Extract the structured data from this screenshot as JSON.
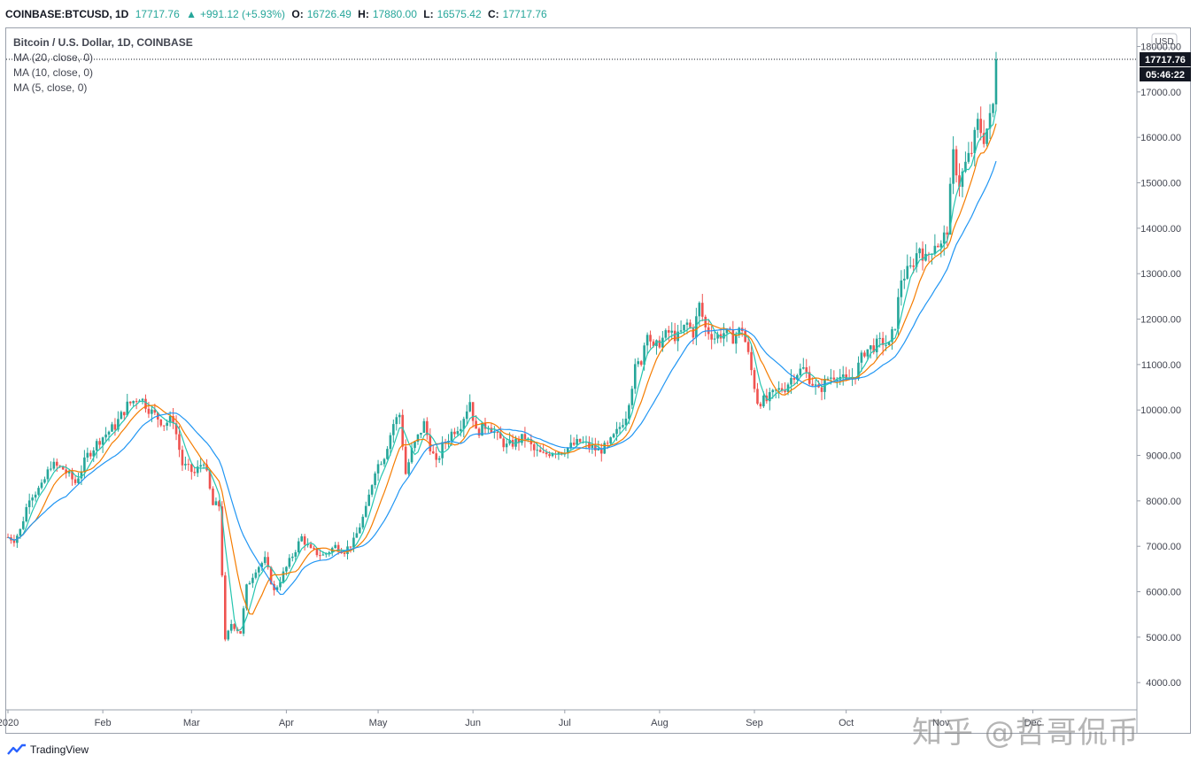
{
  "header": {
    "symbol": "COINBASE:BTCUSD, 1D",
    "last": "17717.76",
    "change": "+991.12 (+5.93%)",
    "open_label": "O:",
    "open": "16726.49",
    "high_label": "H:",
    "high": "17880.00",
    "low_label": "L:",
    "low": "16575.42",
    "close_label": "C:",
    "close": "17717.76"
  },
  "legend": {
    "title": "Bitcoin / U.S. Dollar, 1D, COINBASE",
    "ma20": "MA (20, close, 0)",
    "ma10": "MA (10, close, 0)",
    "ma5": "MA (5, close, 0)"
  },
  "price_axis": {
    "currency": "USD",
    "last_price_tag": "17717.76",
    "countdown_tag": "05:46:22"
  },
  "footer": {
    "brand": "TradingView"
  },
  "watermark": "知乎 @哲哥侃币",
  "colors": {
    "up": "#26a69a",
    "down": "#ef5350",
    "ma5": "#26c6b0",
    "ma10": "#f57c00",
    "ma20": "#2196f3"
  },
  "chart_data": {
    "type": "candlestick",
    "title": "Bitcoin / U.S. Dollar, 1D, COINBASE",
    "ylim": [
      3400,
      18400
    ],
    "y_ticks": [
      4000,
      5000,
      6000,
      7000,
      8000,
      9000,
      10000,
      11000,
      12000,
      13000,
      14000,
      15000,
      16000,
      17000,
      18000
    ],
    "y_tick_labels": [
      "4000.00",
      "5000.00",
      "6000.00",
      "7000.00",
      "8000.00",
      "9000.00",
      "10000.00",
      "11000.00",
      "12000.00",
      "13000.00",
      "14000.00",
      "15000.00",
      "16000.00",
      "17000.00",
      "18000.00"
    ],
    "x_labels": [
      {
        "label": "2020",
        "day": 1
      },
      {
        "label": "Feb",
        "day": 32
      },
      {
        "label": "Mar",
        "day": 61
      },
      {
        "label": "Apr",
        "day": 92
      },
      {
        "label": "May",
        "day": 122
      },
      {
        "label": "Jun",
        "day": 153
      },
      {
        "label": "Jul",
        "day": 183
      },
      {
        "label": "Aug",
        "day": 214
      },
      {
        "label": "Sep",
        "day": 245
      },
      {
        "label": "Oct",
        "day": 275
      },
      {
        "label": "Nov",
        "day": 306
      },
      {
        "label": "Dec",
        "day": 336
      }
    ],
    "day_range": [
      1,
      348
    ],
    "close_anchors": [
      [
        1,
        7200
      ],
      [
        3,
        7150
      ],
      [
        5,
        7350
      ],
      [
        8,
        8100
      ],
      [
        12,
        8300
      ],
      [
        15,
        8800
      ],
      [
        19,
        8700
      ],
      [
        23,
        8400
      ],
      [
        27,
        9000
      ],
      [
        31,
        9350
      ],
      [
        36,
        9650
      ],
      [
        40,
        10100
      ],
      [
        44,
        10300
      ],
      [
        48,
        9950
      ],
      [
        52,
        9700
      ],
      [
        55,
        9800
      ],
      [
        58,
        8800
      ],
      [
        62,
        8600
      ],
      [
        65,
        8900
      ],
      [
        68,
        7900
      ],
      [
        70,
        7900
      ],
      [
        72,
        4900
      ],
      [
        74,
        5300
      ],
      [
        77,
        5100
      ],
      [
        79,
        6100
      ],
      [
        82,
        6500
      ],
      [
        85,
        6700
      ],
      [
        88,
        6000
      ],
      [
        91,
        6400
      ],
      [
        94,
        6800
      ],
      [
        97,
        7200
      ],
      [
        100,
        6900
      ],
      [
        104,
        6800
      ],
      [
        108,
        7000
      ],
      [
        111,
        6900
      ],
      [
        114,
        7100
      ],
      [
        118,
        7800
      ],
      [
        121,
        8700
      ],
      [
        124,
        9000
      ],
      [
        127,
        9700
      ],
      [
        129,
        9900
      ],
      [
        131,
        8600
      ],
      [
        133,
        9100
      ],
      [
        137,
        9700
      ],
      [
        139,
        9200
      ],
      [
        141,
        8800
      ],
      [
        143,
        9200
      ],
      [
        146,
        9500
      ],
      [
        149,
        9700
      ],
      [
        152,
        10200
      ],
      [
        154,
        9500
      ],
      [
        158,
        9700
      ],
      [
        161,
        9400
      ],
      [
        164,
        9200
      ],
      [
        167,
        9300
      ],
      [
        170,
        9400
      ],
      [
        173,
        9100
      ],
      [
        176,
        9000
      ],
      [
        179,
        9100
      ],
      [
        182,
        9100
      ],
      [
        185,
        9200
      ],
      [
        188,
        9300
      ],
      [
        191,
        9200
      ],
      [
        194,
        9100
      ],
      [
        197,
        9200
      ],
      [
        200,
        9500
      ],
      [
        203,
        9900
      ],
      [
        206,
        10900
      ],
      [
        208,
        11100
      ],
      [
        210,
        11800
      ],
      [
        212,
        11300
      ],
      [
        214,
        11500
      ],
      [
        217,
        11700
      ],
      [
        220,
        11600
      ],
      [
        223,
        11900
      ],
      [
        225,
        11700
      ],
      [
        227,
        12300
      ],
      [
        229,
        11800
      ],
      [
        232,
        11600
      ],
      [
        235,
        11700
      ],
      [
        238,
        11600
      ],
      [
        241,
        11800
      ],
      [
        243,
        11200
      ],
      [
        246,
        10200
      ],
      [
        249,
        10200
      ],
      [
        252,
        10400
      ],
      [
        255,
        10500
      ],
      [
        258,
        10800
      ],
      [
        261,
        10900
      ],
      [
        263,
        10700
      ],
      [
        266,
        10400
      ],
      [
        269,
        10700
      ],
      [
        272,
        10800
      ],
      [
        275,
        10600
      ],
      [
        278,
        10800
      ],
      [
        281,
        11300
      ],
      [
        284,
        11400
      ],
      [
        287,
        11500
      ],
      [
        289,
        11400
      ],
      [
        291,
        11900
      ],
      [
        293,
        12900
      ],
      [
        296,
        13100
      ],
      [
        299,
        13600
      ],
      [
        301,
        13300
      ],
      [
        304,
        13700
      ],
      [
        306,
        13600
      ],
      [
        308,
        14000
      ],
      [
        310,
        15600
      ],
      [
        312,
        15000
      ],
      [
        314,
        15400
      ],
      [
        316,
        15700
      ],
      [
        318,
        16300
      ],
      [
        320,
        16000
      ],
      [
        322,
        16400
      ],
      [
        323,
        16700
      ],
      [
        324,
        17718
      ]
    ]
  }
}
